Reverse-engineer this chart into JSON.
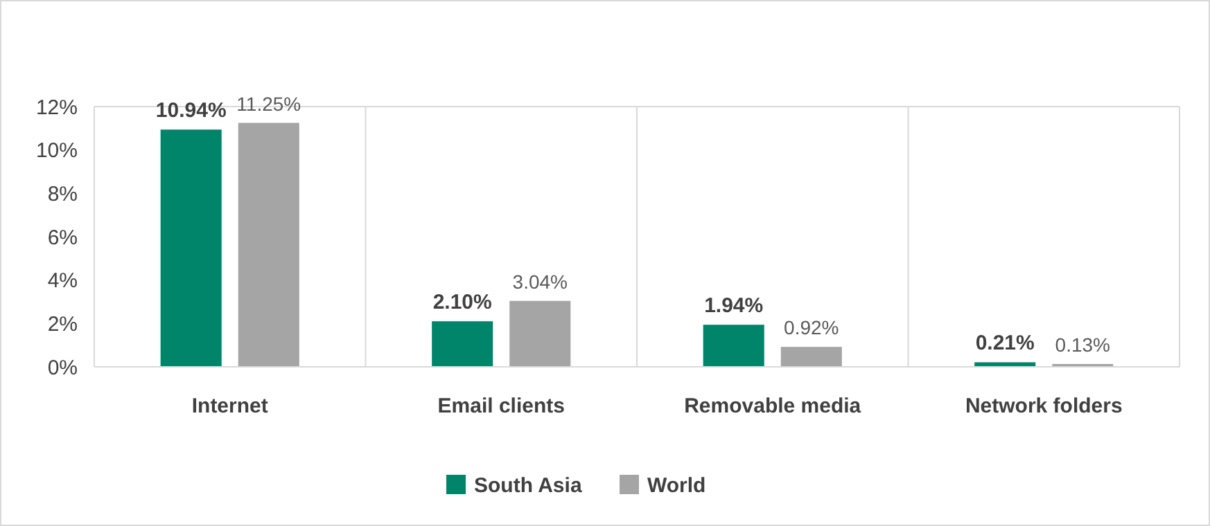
{
  "chart_data": {
    "type": "bar",
    "categories": [
      "Internet",
      "Email clients",
      "Removable media",
      "Network folders"
    ],
    "series": [
      {
        "name": "South Asia",
        "color": "#00856a",
        "values": [
          10.94,
          2.1,
          1.94,
          0.21
        ],
        "value_labels": [
          "10.94%",
          "2.10%",
          "1.94%",
          "0.21%"
        ]
      },
      {
        "name": "World",
        "color": "#a5a5a5",
        "values": [
          11.25,
          3.04,
          0.92,
          0.13
        ],
        "value_labels": [
          "11.25%",
          "3.04%",
          "0.92%",
          "0.13%"
        ]
      }
    ],
    "ylim": [
      0,
      12
    ],
    "yticks": [
      {
        "value": 0,
        "label": "0%"
      },
      {
        "value": 2,
        "label": "2%"
      },
      {
        "value": 4,
        "label": "4%"
      },
      {
        "value": 6,
        "label": "6%"
      },
      {
        "value": 8,
        "label": "8%"
      },
      {
        "value": 10,
        "label": "10%"
      },
      {
        "value": 12,
        "label": "12%"
      }
    ],
    "grid": "x",
    "legend": "bottom"
  }
}
